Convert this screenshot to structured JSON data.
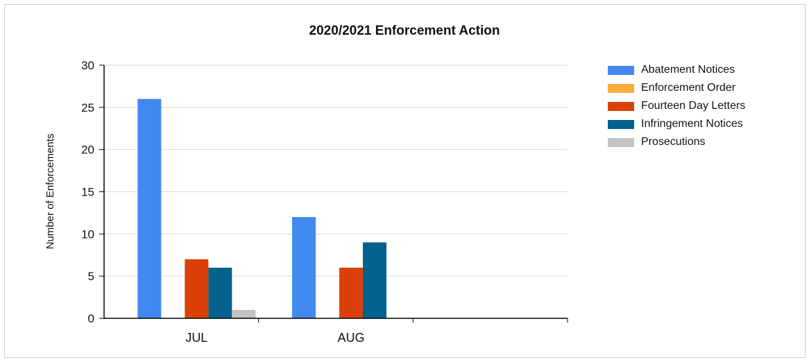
{
  "chart_data": {
    "type": "bar",
    "title": "2020/2021 Enforcement Action",
    "ylabel": "Number of Enforcements",
    "xlabel": "",
    "categories": [
      "JUL",
      "AUG"
    ],
    "ylim": [
      0,
      30
    ],
    "yticks": [
      0,
      5,
      10,
      15,
      20,
      25,
      30
    ],
    "grid": true,
    "legend_position": "right",
    "series": [
      {
        "name": "Abatement Notices",
        "color": "#4189ee",
        "values": [
          26,
          12
        ]
      },
      {
        "name": "Enforcement Order",
        "color": "#f9ae3c",
        "values": [
          0,
          0
        ]
      },
      {
        "name": "Fourteen Day Letters",
        "color": "#dc4009",
        "values": [
          7,
          6
        ]
      },
      {
        "name": "Infringement Notices",
        "color": "#03628e",
        "values": [
          6,
          9
        ]
      },
      {
        "name": "Prosecutions",
        "color": "#c3c3c3",
        "values": [
          1,
          0
        ]
      }
    ]
  }
}
